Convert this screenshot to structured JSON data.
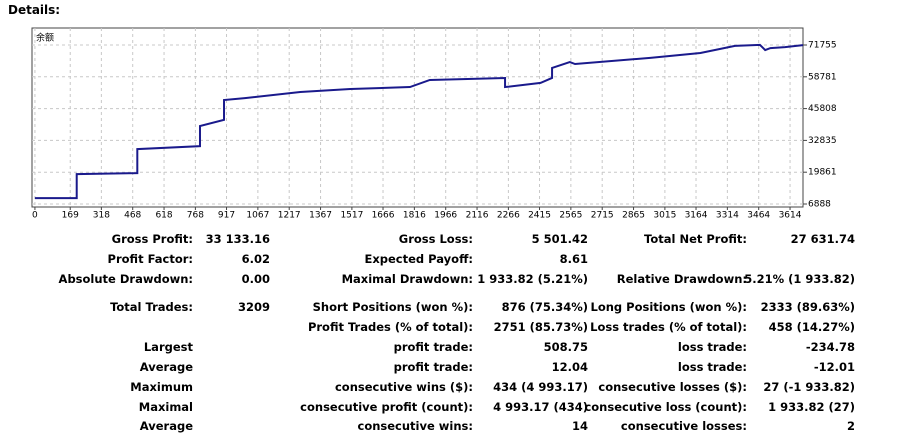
{
  "header": {
    "title": "Details:"
  },
  "chart_data": {
    "type": "line",
    "label": "余额",
    "x": [
      0,
      200,
      200,
      490,
      490,
      790,
      790,
      905,
      905,
      1005,
      1270,
      1510,
      1795,
      1890,
      2250,
      2250,
      2420,
      2475,
      2475,
      2560,
      2585,
      2945,
      3185,
      3350,
      3470,
      3495,
      3520,
      3590,
      3676
    ],
    "series": [
      {
        "color": "#1a1a8c",
        "values": [
          9300,
          9300,
          19100,
          19500,
          29300,
          30500,
          38700,
          41200,
          49300,
          50100,
          52600,
          53800,
          54600,
          57500,
          58300,
          54600,
          56300,
          58300,
          62400,
          64800,
          64000,
          66500,
          68500,
          71400,
          71800,
          69700,
          70500,
          70900,
          71700
        ]
      }
    ],
    "xlim": [
      -14,
      3676
    ],
    "ylim": [
      5664,
      78691
    ],
    "xticks": [
      0,
      169,
      318,
      468,
      618,
      768,
      917,
      1067,
      1217,
      1367,
      1517,
      1666,
      1816,
      1966,
      2116,
      2266,
      2415,
      2565,
      2715,
      2865,
      3015,
      3164,
      3314,
      3464,
      3614
    ],
    "yticks": [
      6888,
      19861,
      32835,
      45808,
      58781,
      71755
    ],
    "grid": true
  },
  "table": {
    "rows": [
      [
        "Gross Profit:",
        "33 133.16",
        "Gross Loss:",
        "5 501.42",
        "Total Net Profit:",
        "27 631.74"
      ],
      [
        "Profit Factor:",
        "6.02",
        "Expected Payoff:",
        "8.61",
        null,
        null
      ],
      [
        "Absolute Drawdown:",
        "0.00",
        "Maximal Drawdown:",
        "1 933.82 (5.21%)",
        "Relative Drawdown:",
        "5.21% (1 933.82)"
      ],
      [
        "Total Trades:",
        "3209",
        "Short Positions (won %):",
        "876 (75.34%)",
        "Long Positions (won %):",
        "2333 (89.63%)"
      ],
      [
        null,
        null,
        "Profit Trades (% of total):",
        "2751 (85.73%)",
        "Loss trades (% of total):",
        "458 (14.27%)"
      ],
      [
        "Largest",
        null,
        "profit trade:",
        "508.75",
        "loss trade:",
        "-234.78"
      ],
      [
        "Average",
        null,
        "profit trade:",
        "12.04",
        "loss trade:",
        "-12.01"
      ],
      [
        "Maximum",
        null,
        "consecutive wins ($):",
        "434 (4 993.17)",
        "consecutive losses ($):",
        "27 (-1 933.82)"
      ],
      [
        "Maximal",
        null,
        "consecutive profit (count):",
        "4 993.17 (434)",
        "consecutive loss (count):",
        "1 933.82 (27)"
      ],
      [
        "Average",
        null,
        "consecutive wins:",
        "14",
        "consecutive losses:",
        "2"
      ]
    ]
  }
}
